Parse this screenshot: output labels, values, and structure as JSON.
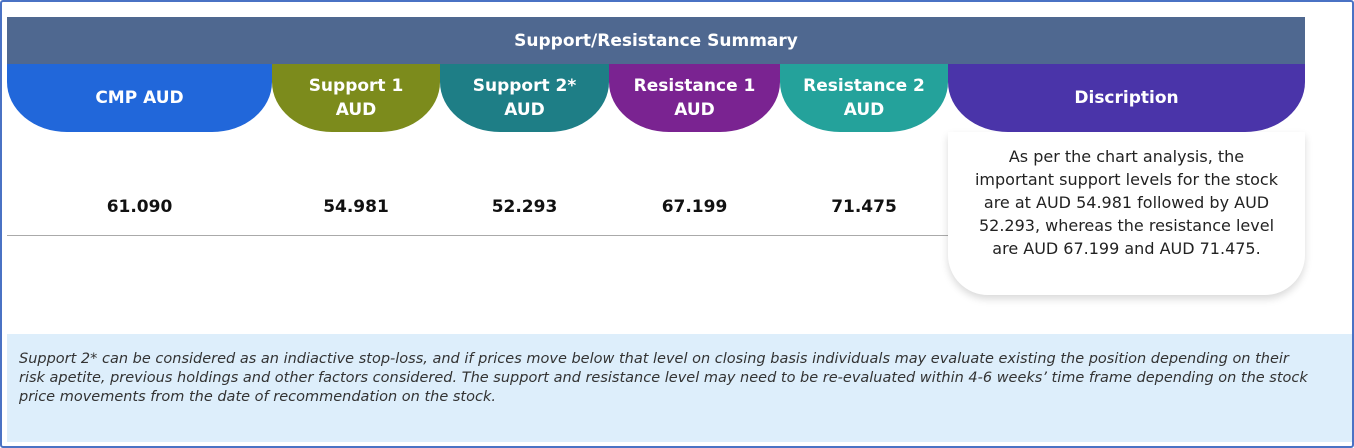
{
  "title": "Support/Resistance Summary",
  "columns": [
    {
      "label": "CMP AUD",
      "value": "61.090"
    },
    {
      "label": "Support 1 AUD",
      "value": "54.981"
    },
    {
      "label": "Support 2* AUD",
      "value": "52.293"
    },
    {
      "label": "Resistance 1 AUD",
      "value": "67.199"
    },
    {
      "label": "Resistance 2 AUD",
      "value": "71.475"
    }
  ],
  "description": {
    "label": "Discription",
    "text": "As per the chart analysis, the important support levels for the stock are at AUD 54.981 followed by AUD 52.293, whereas the resistance level are AUD 67.199 and AUD 71.475."
  },
  "footnote": "Support 2* can be considered as an indiactive stop-loss, and if prices move below that level on closing basis individuals may evaluate existing the position depending on their risk apetite, previous holdings and other factors considered. The support and resistance level may need to be re-evaluated within 4-6 weeks’ time frame depending on the stock price movements from  the date of recommendation on the stock."
}
